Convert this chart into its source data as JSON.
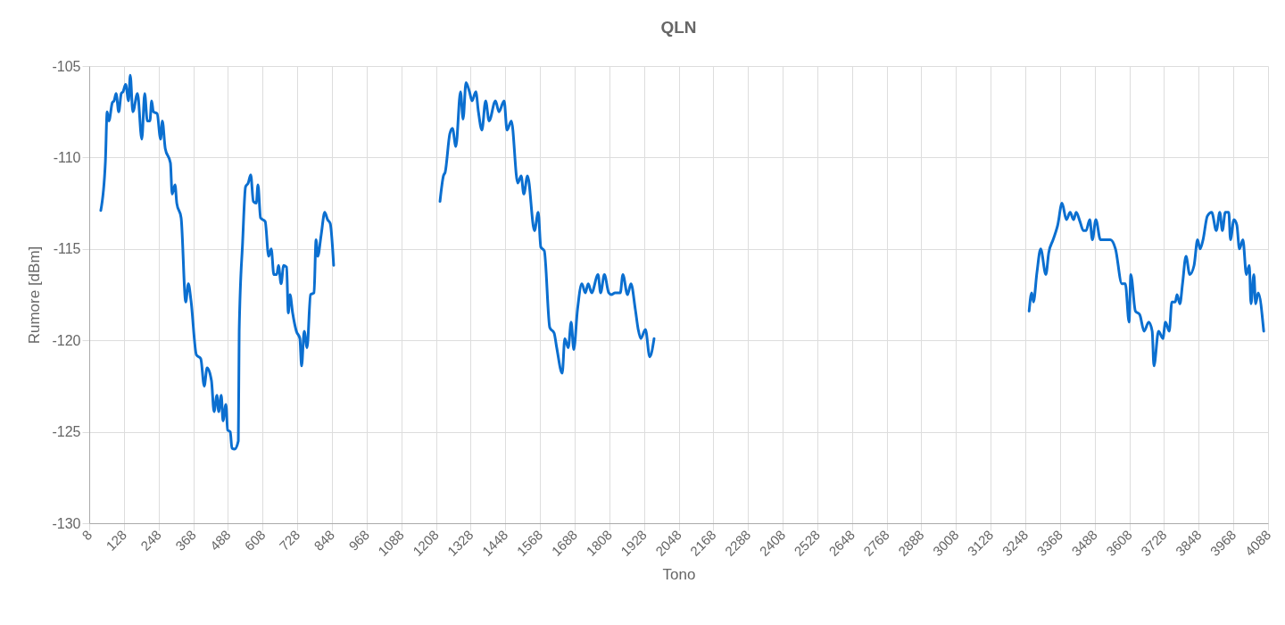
{
  "chart_data": {
    "type": "line",
    "title": "QLN",
    "xlabel": "Tono",
    "ylabel": "Rumore [dBm]",
    "grid": true,
    "xlim": [
      8,
      4088
    ],
    "xticks": [
      8,
      128,
      248,
      368,
      488,
      608,
      728,
      848,
      968,
      1088,
      1208,
      1328,
      1448,
      1568,
      1688,
      1808,
      1928,
      2048,
      2168,
      2288,
      2408,
      2528,
      2648,
      2768,
      2888,
      3008,
      3128,
      3248,
      3368,
      3488,
      3608,
      3728,
      3848,
      3968,
      4088
    ],
    "ylim": [
      -130,
      -105
    ],
    "yticks": [
      -130,
      -125,
      -120,
      -115,
      -110,
      -105
    ],
    "x": [
      48,
      64,
      70,
      76,
      88,
      94,
      101,
      110,
      119,
      125,
      134,
      144,
      150,
      159,
      175,
      190,
      200,
      209,
      218,
      224,
      230,
      243,
      255,
      261,
      271,
      289,
      295,
      305,
      311,
      326,
      342,
      351,
      360,
      379,
      394,
      406,
      416,
      431,
      440,
      450,
      456,
      465,
      471,
      481,
      487,
      496,
      502,
      511,
      524,
      527,
      539,
      549,
      558,
      567,
      576,
      586,
      592,
      601,
      617,
      629,
      638,
      647,
      657,
      663,
      672,
      681,
      691,
      697,
      703,
      712,
      725,
      737,
      743,
      752,
      762,
      774,
      786,
      793,
      799,
      811,
      823,
      833,
      842,
      854,
      1100,
      1222,
      1234,
      1240,
      1256,
      1265,
      1277,
      1293,
      1302,
      1312,
      1324,
      1333,
      1346,
      1355,
      1367,
      1380,
      1392,
      1414,
      1426,
      1444,
      1454,
      1469,
      1491,
      1503,
      1512,
      1525,
      1549,
      1562,
      1571,
      1583,
      1602,
      1617,
      1626,
      1645,
      1654,
      1666,
      1676,
      1685,
      1698,
      1713,
      1725,
      1735,
      1747,
      1769,
      1778,
      1791,
      1806,
      1815,
      1828,
      1846,
      1855,
      1871,
      1883,
      1898,
      1908,
      1917,
      1933,
      1948,
      1963,
      2600,
      3261,
      3270,
      3276,
      3288,
      3301,
      3319,
      3329,
      3344,
      3360,
      3375,
      3390,
      3403,
      3415,
      3424,
      3437,
      3449,
      3458,
      3471,
      3480,
      3492,
      3508,
      3542,
      3560,
      3582,
      3594,
      3607,
      3613,
      3629,
      3644,
      3659,
      3675,
      3687,
      3693,
      3709,
      3724,
      3733,
      3746,
      3755,
      3767,
      3773,
      3783,
      3792,
      3804,
      3817,
      3832,
      3844,
      3853,
      3863,
      3878,
      3893,
      3909,
      3921,
      3930,
      3940,
      3952,
      3958,
      3970,
      3980,
      3989,
      4001,
      4013,
      4023,
      4029,
      4039,
      4045,
      4054,
      4073
    ],
    "series": [
      {
        "color": "#0b6fd0",
        "values": [
          -112.9,
          -110.2,
          -107.5,
          -108.0,
          -107.0,
          -106.9,
          -106.5,
          -107.5,
          -106.5,
          -106.4,
          -106.0,
          -106.9,
          -105.5,
          -107.5,
          -106.5,
          -109.0,
          -106.5,
          -108.0,
          -108.0,
          -106.9,
          -107.5,
          -107.6,
          -109.0,
          -108.0,
          -109.5,
          -110.3,
          -112.0,
          -111.5,
          -112.5,
          -113.3,
          -117.9,
          -116.9,
          -117.8,
          -120.8,
          -121.0,
          -122.5,
          -121.5,
          -122.2,
          -123.9,
          -123.0,
          -123.9,
          -123.0,
          -124.4,
          -123.5,
          -124.9,
          -125.0,
          -125.9,
          -125.95,
          -125.5,
          -119.5,
          -114.6,
          -111.6,
          -111.4,
          -110.95,
          -112.4,
          -112.5,
          -111.5,
          -113.3,
          -113.5,
          -115.4,
          -115.0,
          -116.4,
          -116.4,
          -115.9,
          -116.9,
          -115.9,
          -116.0,
          -118.5,
          -117.5,
          -118.5,
          -119.5,
          -119.9,
          -121.4,
          -119.5,
          -120.4,
          -117.5,
          -117.4,
          -114.5,
          -115.4,
          -114.2,
          -113.0,
          -113.4,
          -113.6,
          -115.9,
          null,
          -112.4,
          -111.0,
          -110.8,
          -108.7,
          -108.4,
          -109.4,
          -106.4,
          -107.9,
          -105.9,
          -106.4,
          -106.9,
          -106.4,
          -107.5,
          -108.5,
          -106.9,
          -108.0,
          -106.9,
          -107.5,
          -106.9,
          -108.5,
          -108.0,
          -111.4,
          -111.0,
          -112.0,
          -111.0,
          -114.0,
          -113.0,
          -114.9,
          -115.1,
          -119.3,
          -119.6,
          -120.4,
          -121.8,
          -119.9,
          -120.4,
          -119.0,
          -120.5,
          -118.3,
          -116.9,
          -117.4,
          -116.9,
          -117.4,
          -116.4,
          -117.4,
          -116.4,
          -117.4,
          -117.5,
          -117.4,
          -117.4,
          -116.4,
          -117.5,
          -116.9,
          -118.3,
          -119.4,
          -119.9,
          -119.4,
          -120.9,
          -119.9,
          null,
          -118.4,
          -117.4,
          -117.9,
          -116.3,
          -115.0,
          -116.4,
          -115.2,
          -114.5,
          -113.7,
          -112.5,
          -113.4,
          -113.0,
          -113.4,
          -113.0,
          -113.5,
          -114.0,
          -114.0,
          -113.4,
          -114.5,
          -113.4,
          -114.5,
          -114.5,
          -115.0,
          -116.9,
          -116.9,
          -119.0,
          -116.4,
          -118.4,
          -118.6,
          -119.5,
          -119.0,
          -119.5,
          -121.4,
          -119.5,
          -119.9,
          -119.0,
          -119.5,
          -117.9,
          -117.9,
          -117.5,
          -118.0,
          -116.9,
          -115.4,
          -116.4,
          -115.9,
          -114.5,
          -115.0,
          -114.5,
          -113.2,
          -113.0,
          -114.0,
          -113.0,
          -114.0,
          -113.0,
          -113.0,
          -114.5,
          -113.4,
          -113.7,
          -115.0,
          -114.5,
          -116.4,
          -115.9,
          -118.0,
          -116.4,
          -118.0,
          -117.4,
          -119.5
        ]
      }
    ]
  }
}
